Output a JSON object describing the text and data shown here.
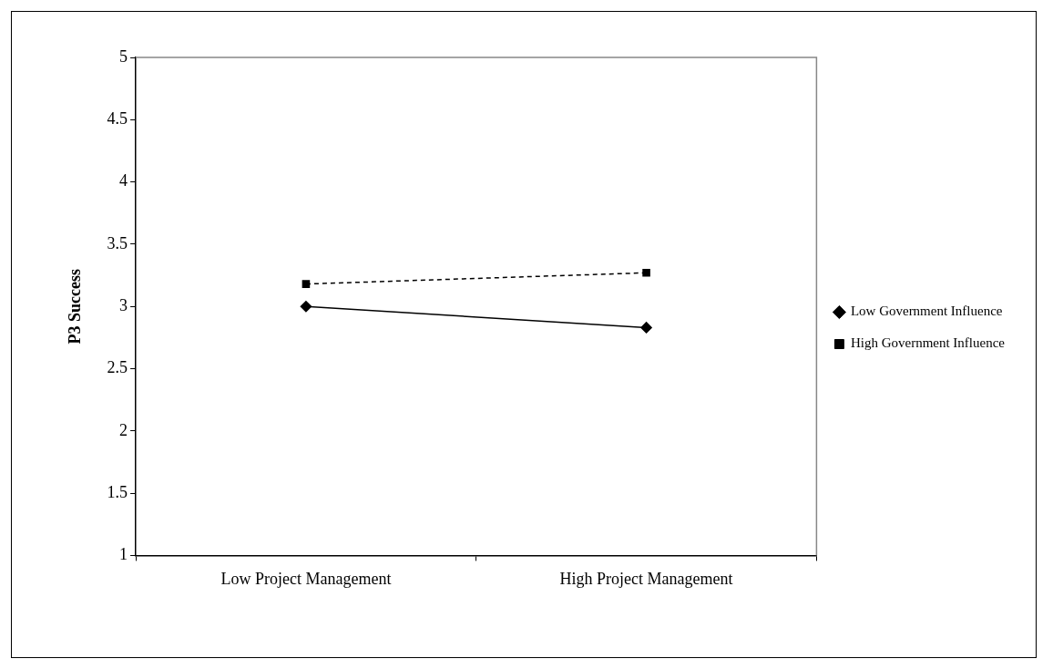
{
  "chart_data": {
    "type": "line",
    "ylabel": "P3 Success",
    "categories": [
      "Low Project Management",
      "High Project Management"
    ],
    "series": [
      {
        "name": "Low Government Influence",
        "color": "#000000",
        "values": [
          3.0,
          2.83
        ],
        "marker": "diamond",
        "line_style": "solid"
      },
      {
        "name": "High Government Influence",
        "color": "#000000",
        "values": [
          3.18,
          3.27
        ],
        "marker": "square",
        "line_style": "dashed"
      }
    ],
    "ylim": [
      1,
      5
    ],
    "yticks": [
      1,
      1.5,
      2,
      2.5,
      3,
      3.5,
      4,
      4.5,
      5
    ],
    "grid": false,
    "legend": "right"
  }
}
